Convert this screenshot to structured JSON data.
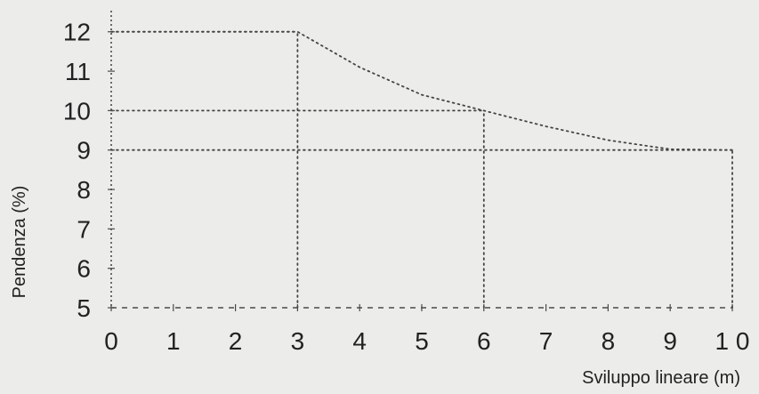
{
  "chart_data": {
    "type": "line",
    "xlabel": "Sviluppo lineare (m)",
    "ylabel": "Pendenza (%)",
    "xlim": [
      0,
      10
    ],
    "ylim": [
      5,
      12.4
    ],
    "x_ticks": [
      "0",
      "1",
      "2",
      "3",
      "4",
      "5",
      "6",
      "7",
      "8",
      "9",
      "1 0"
    ],
    "y_ticks": [
      "5",
      "6",
      "7",
      "8",
      "9",
      "10",
      "11",
      "12"
    ],
    "grid": false,
    "series": [
      {
        "values": [
          {
            "x": 0,
            "y": 12
          },
          {
            "x": 3,
            "y": 12
          },
          {
            "x": 4,
            "y": 11.1
          },
          {
            "x": 5,
            "y": 10.4
          },
          {
            "x": 6,
            "y": 10
          },
          {
            "x": 7,
            "y": 9.6
          },
          {
            "x": 8,
            "y": 9.25
          },
          {
            "x": 9,
            "y": 9.02
          },
          {
            "x": 10,
            "y": 9
          }
        ]
      }
    ],
    "reference_lines": [
      {
        "orientation": "horizontal",
        "y": 12,
        "x_from": 0,
        "x_to": 3
      },
      {
        "orientation": "horizontal",
        "y": 10,
        "x_from": 0,
        "x_to": 6
      },
      {
        "orientation": "horizontal",
        "y": 9,
        "x_from": 0,
        "x_to": 10
      },
      {
        "orientation": "vertical",
        "x": 3,
        "y_from": 5,
        "y_to": 12
      },
      {
        "orientation": "vertical",
        "x": 6,
        "y_from": 5,
        "y_to": 10
      },
      {
        "orientation": "vertical",
        "x": 10,
        "y_from": 5,
        "y_to": 9
      }
    ],
    "colors": {
      "background": "#ececea",
      "axis": "#4a4a4a",
      "dotted": "#444444",
      "text": "#222222"
    }
  }
}
